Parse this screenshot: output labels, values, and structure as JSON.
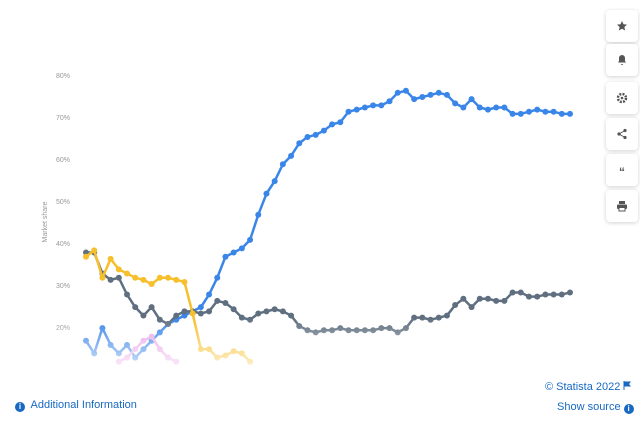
{
  "chart_data": {
    "type": "line",
    "y_label": "Market share",
    "ylim": [
      11,
      80
    ],
    "yticks": [
      {
        "value": 20,
        "label": "20%"
      },
      {
        "value": 30,
        "label": "30%"
      },
      {
        "value": 40,
        "label": "40%"
      },
      {
        "value": 50,
        "label": "50%"
      },
      {
        "value": 60,
        "label": "60%"
      },
      {
        "value": 70,
        "label": "70%"
      },
      {
        "value": 80,
        "label": "80%"
      }
    ],
    "series": [
      {
        "color": "#3a86e8",
        "values": [
          17,
          14,
          20,
          16,
          14,
          16,
          13,
          15,
          17,
          19,
          21,
          22,
          23,
          24,
          25,
          28,
          32,
          37,
          38,
          39,
          41,
          47,
          52,
          55,
          59,
          61,
          64,
          65.5,
          66,
          67,
          68.5,
          69,
          71.5,
          72,
          72.5,
          73,
          73,
          74,
          76,
          76.5,
          74.5,
          75,
          75.5,
          76,
          75.5,
          73.5,
          72.5,
          74.5,
          72.5,
          72,
          72.5,
          72.5,
          71,
          71,
          71.5,
          72,
          71.5,
          71.5,
          71,
          71
        ]
      },
      {
        "color": "#5f6f80",
        "values": [
          38,
          38,
          33,
          31.5,
          32,
          28,
          25,
          23,
          25,
          22,
          21,
          23,
          24,
          24,
          23.5,
          24,
          26.5,
          26,
          24.5,
          22.5,
          22,
          23.5,
          24,
          24.5,
          24,
          23,
          20.5,
          19.5,
          19,
          19.5,
          19.5,
          20,
          19.5,
          19.5,
          19.5,
          19.5,
          20,
          20,
          19,
          20,
          22.5,
          22.5,
          22,
          22.5,
          23,
          25.5,
          27,
          25,
          27,
          27,
          26.5,
          26.5,
          28.5,
          28.5,
          27.5,
          27.5,
          28,
          28,
          28,
          28.5
        ]
      },
      {
        "color": "#f6c02c",
        "values": [
          37,
          38.5,
          32,
          36.5,
          34,
          33,
          32,
          31.5,
          30.5,
          32,
          32,
          31.5,
          31,
          23.5,
          15,
          15,
          13,
          13.5,
          14.5,
          14,
          12,
          null,
          null,
          null,
          null,
          null,
          null,
          null,
          null,
          null,
          null,
          null,
          null,
          null,
          null,
          null,
          null,
          null,
          null,
          null,
          null,
          null,
          null,
          null,
          null,
          null,
          null,
          null,
          null,
          null,
          null,
          null,
          null,
          null,
          null,
          null,
          null,
          null,
          null,
          null
        ]
      },
      {
        "color": "#e9a6e6",
        "values": [
          null,
          null,
          null,
          null,
          12,
          13,
          15,
          17,
          18,
          15,
          13,
          12,
          null,
          null,
          null,
          null,
          null,
          null,
          null,
          null,
          null,
          null,
          null,
          null,
          null,
          null,
          null,
          null,
          null,
          null,
          null,
          null,
          null,
          null,
          null,
          null,
          null,
          null,
          null,
          null,
          null,
          null,
          null,
          null,
          null,
          null,
          null,
          null,
          null,
          null,
          null,
          null,
          null,
          null,
          null,
          null,
          null,
          null,
          null,
          null
        ]
      }
    ]
  },
  "footer": {
    "copyright": "© Statista 2022",
    "additional_info": "Additional Information",
    "show_source": "Show source"
  }
}
